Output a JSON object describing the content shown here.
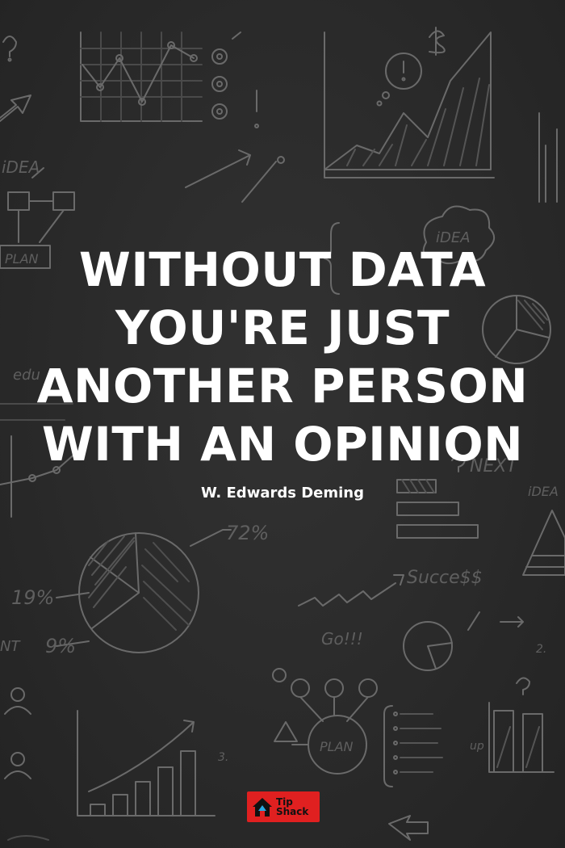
{
  "quote": {
    "lines": [
      "Without data",
      "you're just",
      "another person",
      "with an opinion"
    ]
  },
  "author": "W. Edwards Deming",
  "brand": {
    "line1": "Tip",
    "line2": "Shack",
    "color": "#e02020"
  },
  "background": {
    "color": "#2a2a2a",
    "sketch_color": "#6a6a6a",
    "sketch_labels": {
      "idea_left": "iDEA",
      "plan_left": "PLAN",
      "idea_cloud": "iDEA",
      "education": "edu",
      "percent_72": "72%",
      "percent_19": "19%",
      "percent_9": "9%",
      "nt": "NT",
      "next": "NEXT",
      "idea_right": "iDEA",
      "success": "Succe$$",
      "go": "Go!!!",
      "plan_bottom": "PLAN",
      "up": "up",
      "num3": "3.",
      "num2": "2."
    }
  }
}
